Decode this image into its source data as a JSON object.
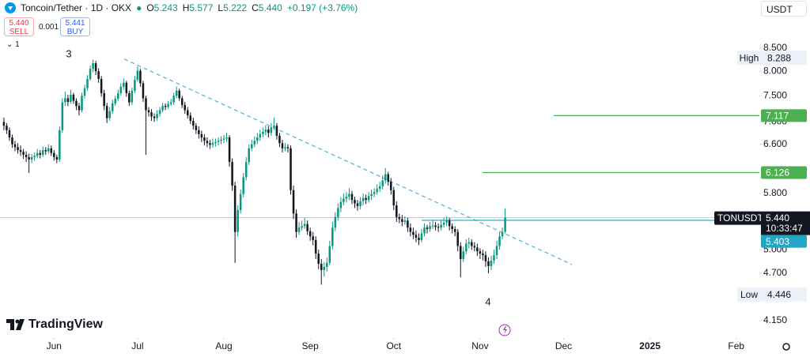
{
  "header": {
    "symbol": "Toncoin/Tether · 1D · OKX",
    "ohlc": [
      {
        "key": "O",
        "value": "5.243"
      },
      {
        "key": "H",
        "value": "5.577"
      },
      {
        "key": "L",
        "value": "5.222"
      },
      {
        "key": "C",
        "value": "5.440"
      }
    ],
    "change": "+0.197 (+3.76%)",
    "sell": {
      "price": "5.440",
      "label": "SELL"
    },
    "spread": "0.001",
    "buy": {
      "price": "5.441",
      "label": "BUY"
    },
    "indicators_count": "1",
    "currency": "USDT",
    "logo": "TradingView"
  },
  "chart_data": {
    "type": "candlestick",
    "log": true,
    "ylim": [
      3.988,
      9.256
    ],
    "yticks": [
      {
        "value": 8.5,
        "label": "8.500"
      },
      {
        "value": 8,
        "label": "8.000"
      },
      {
        "value": 7.5,
        "label": "7.500"
      },
      {
        "value": 7,
        "label": "7.000"
      },
      {
        "value": 6.6,
        "label": "6.600"
      },
      {
        "value": 5.8,
        "label": "5.800"
      },
      {
        "value": 5,
        "label": "5.000"
      },
      {
        "value": 4.7,
        "label": "4.700"
      },
      {
        "value": 4.15,
        "label": "4.150"
      }
    ],
    "xlim": [
      -1.4,
      271.3
    ],
    "xticks": [
      {
        "value": 18,
        "label": "Jun"
      },
      {
        "value": 48,
        "label": "Jul"
      },
      {
        "value": 79,
        "label": "Aug"
      },
      {
        "value": 110,
        "label": "Sep"
      },
      {
        "value": 140,
        "label": "Oct"
      },
      {
        "value": 171,
        "label": "Nov"
      },
      {
        "value": 201,
        "label": "Dec"
      },
      {
        "value": 232,
        "label": "2025",
        "bold": true
      },
      {
        "value": 263,
        "label": "Feb"
      }
    ],
    "colors": {
      "up": "#089981",
      "down": "#131722"
    },
    "candles": [
      [
        7.0,
        7.08,
        6.85,
        6.93
      ],
      [
        6.93,
        6.98,
        6.78,
        6.85
      ],
      [
        6.85,
        6.9,
        6.66,
        6.72
      ],
      [
        6.72,
        6.77,
        6.54,
        6.6
      ],
      [
        6.6,
        6.66,
        6.48,
        6.55
      ],
      [
        6.55,
        6.62,
        6.44,
        6.5
      ],
      [
        6.5,
        6.58,
        6.4,
        6.47
      ],
      [
        6.47,
        6.52,
        6.35,
        6.42
      ],
      [
        6.42,
        6.48,
        6.3,
        6.38
      ],
      [
        6.38,
        6.44,
        6.12,
        6.34
      ],
      [
        6.34,
        6.43,
        6.28,
        6.38
      ],
      [
        6.38,
        6.46,
        6.32,
        6.4
      ],
      [
        6.4,
        6.52,
        6.36,
        6.45
      ],
      [
        6.45,
        6.5,
        6.36,
        6.42
      ],
      [
        6.42,
        6.56,
        6.38,
        6.5
      ],
      [
        6.5,
        6.55,
        6.42,
        6.48
      ],
      [
        6.48,
        6.6,
        6.44,
        6.53
      ],
      [
        6.53,
        6.58,
        6.4,
        6.45
      ],
      [
        6.45,
        6.5,
        6.32,
        6.38
      ],
      [
        6.38,
        6.42,
        6.28,
        6.34
      ],
      [
        6.34,
        6.92,
        6.3,
        6.85
      ],
      [
        6.85,
        7.45,
        6.8,
        7.37
      ],
      [
        7.37,
        7.58,
        7.3,
        7.45
      ],
      [
        7.45,
        7.52,
        7.3,
        7.38
      ],
      [
        7.38,
        7.62,
        7.34,
        7.52
      ],
      [
        7.52,
        7.56,
        7.34,
        7.4
      ],
      [
        7.4,
        7.45,
        7.22,
        7.3
      ],
      [
        7.3,
        7.36,
        7.12,
        7.22
      ],
      [
        7.22,
        7.56,
        7.18,
        7.5
      ],
      [
        7.5,
        7.72,
        7.45,
        7.65
      ],
      [
        7.65,
        7.92,
        7.6,
        7.84
      ],
      [
        7.84,
        8.12,
        7.8,
        8.05
      ],
      [
        8.05,
        8.25,
        7.98,
        8.17
      ],
      [
        8.17,
        8.22,
        7.92,
        8.0
      ],
      [
        8.0,
        8.06,
        7.76,
        7.84
      ],
      [
        7.84,
        7.9,
        7.48,
        7.55
      ],
      [
        7.55,
        7.62,
        7.22,
        7.3
      ],
      [
        7.3,
        7.36,
        6.98,
        7.07
      ],
      [
        7.07,
        7.28,
        7.02,
        7.2
      ],
      [
        7.2,
        7.42,
        7.15,
        7.35
      ],
      [
        7.35,
        7.5,
        7.3,
        7.44
      ],
      [
        7.44,
        7.62,
        7.4,
        7.55
      ],
      [
        7.55,
        7.75,
        7.5,
        7.68
      ],
      [
        7.68,
        7.85,
        7.62,
        7.76
      ],
      [
        7.76,
        7.8,
        7.48,
        7.55
      ],
      [
        7.55,
        7.6,
        7.3,
        7.37
      ],
      [
        7.37,
        7.66,
        7.32,
        7.6
      ],
      [
        7.6,
        7.9,
        7.55,
        7.82
      ],
      [
        7.82,
        8.1,
        7.78,
        8.01
      ],
      [
        8.01,
        8.05,
        7.68,
        7.75
      ],
      [
        7.75,
        7.8,
        7.38,
        7.45
      ],
      [
        7.45,
        7.5,
        6.42,
        7.22
      ],
      [
        7.22,
        7.28,
        7.1,
        7.18
      ],
      [
        7.18,
        7.24,
        7.02,
        7.1
      ],
      [
        7.1,
        7.16,
        7.0,
        7.07
      ],
      [
        7.07,
        7.22,
        7.02,
        7.15
      ],
      [
        7.15,
        7.28,
        7.1,
        7.22
      ],
      [
        7.22,
        7.36,
        7.18,
        7.3
      ],
      [
        7.3,
        7.35,
        7.22,
        7.28
      ],
      [
        7.28,
        7.4,
        7.24,
        7.34
      ],
      [
        7.34,
        7.44,
        7.3,
        7.37
      ],
      [
        7.37,
        7.56,
        7.32,
        7.5
      ],
      [
        7.5,
        7.68,
        7.45,
        7.6
      ],
      [
        7.6,
        7.64,
        7.4,
        7.45
      ],
      [
        7.45,
        7.5,
        7.26,
        7.32
      ],
      [
        7.32,
        7.38,
        7.15,
        7.22
      ],
      [
        7.22,
        7.28,
        7.06,
        7.12
      ],
      [
        7.12,
        7.18,
        6.96,
        7.02
      ],
      [
        7.02,
        7.08,
        6.86,
        6.93
      ],
      [
        6.93,
        6.98,
        6.78,
        6.85
      ],
      [
        6.85,
        6.92,
        6.7,
        6.78
      ],
      [
        6.78,
        6.84,
        6.64,
        6.72
      ],
      [
        6.72,
        6.78,
        6.58,
        6.66
      ],
      [
        6.66,
        6.72,
        6.55,
        6.62
      ],
      [
        6.62,
        6.68,
        6.52,
        6.59
      ],
      [
        6.59,
        6.7,
        6.54,
        6.62
      ],
      [
        6.62,
        6.7,
        6.56,
        6.64
      ],
      [
        6.64,
        6.72,
        6.58,
        6.66
      ],
      [
        6.66,
        6.74,
        6.6,
        6.68
      ],
      [
        6.68,
        6.76,
        6.62,
        6.7
      ],
      [
        6.7,
        6.8,
        6.64,
        6.72
      ],
      [
        6.72,
        6.76,
        6.22,
        6.3
      ],
      [
        6.3,
        6.36,
        5.84,
        5.92
      ],
      [
        5.92,
        5.98,
        4.83,
        5.24
      ],
      [
        5.24,
        5.62,
        5.18,
        5.55
      ],
      [
        5.55,
        5.86,
        5.5,
        5.79
      ],
      [
        5.79,
        6.12,
        5.74,
        6.05
      ],
      [
        6.05,
        6.38,
        6.0,
        6.3
      ],
      [
        6.3,
        6.6,
        6.25,
        6.53
      ],
      [
        6.53,
        6.68,
        6.48,
        6.6
      ],
      [
        6.6,
        6.74,
        6.55,
        6.66
      ],
      [
        6.66,
        6.8,
        6.6,
        6.72
      ],
      [
        6.72,
        6.86,
        6.66,
        6.78
      ],
      [
        6.78,
        6.9,
        6.72,
        6.82
      ],
      [
        6.82,
        6.94,
        6.76,
        6.86
      ],
      [
        6.86,
        6.92,
        6.72,
        6.8
      ],
      [
        6.8,
        6.98,
        6.75,
        6.9
      ],
      [
        6.9,
        7.08,
        6.85,
        6.93
      ],
      [
        6.93,
        6.98,
        6.68,
        6.75
      ],
      [
        6.75,
        6.8,
        6.55,
        6.62
      ],
      [
        6.62,
        6.68,
        6.46,
        6.53
      ],
      [
        6.53,
        6.62,
        6.48,
        6.55
      ],
      [
        6.55,
        6.6,
        6.46,
        6.53
      ],
      [
        6.53,
        6.58,
        5.78,
        5.85
      ],
      [
        5.85,
        5.92,
        5.42,
        5.5
      ],
      [
        5.5,
        5.56,
        5.16,
        5.24
      ],
      [
        5.24,
        5.38,
        5.2,
        5.3
      ],
      [
        5.3,
        5.4,
        5.26,
        5.32
      ],
      [
        5.32,
        5.44,
        5.28,
        5.35
      ],
      [
        5.35,
        5.4,
        5.2,
        5.25
      ],
      [
        5.25,
        5.3,
        5.12,
        5.18
      ],
      [
        5.18,
        5.24,
        5.06,
        5.13
      ],
      [
        5.13,
        5.18,
        4.88,
        4.95
      ],
      [
        4.95,
        5.0,
        4.75,
        4.82
      ],
      [
        4.82,
        4.88,
        4.56,
        4.74
      ],
      [
        4.74,
        4.84,
        4.66,
        4.78
      ],
      [
        4.78,
        4.9,
        4.72,
        4.83
      ],
      [
        4.83,
        5.12,
        4.8,
        5.05
      ],
      [
        5.05,
        5.38,
        5.0,
        5.3
      ],
      [
        5.3,
        5.52,
        5.25,
        5.45
      ],
      [
        5.45,
        5.65,
        5.4,
        5.58
      ],
      [
        5.58,
        5.74,
        5.52,
        5.67
      ],
      [
        5.67,
        5.8,
        5.62,
        5.72
      ],
      [
        5.72,
        5.82,
        5.66,
        5.75
      ],
      [
        5.75,
        5.88,
        5.7,
        5.79
      ],
      [
        5.79,
        5.84,
        5.64,
        5.7
      ],
      [
        5.7,
        5.75,
        5.58,
        5.65
      ],
      [
        5.65,
        5.7,
        5.54,
        5.61
      ],
      [
        5.61,
        5.74,
        5.56,
        5.68
      ],
      [
        5.68,
        5.8,
        5.62,
        5.73
      ],
      [
        5.73,
        5.78,
        5.64,
        5.7
      ],
      [
        5.7,
        5.82,
        5.66,
        5.76
      ],
      [
        5.76,
        5.86,
        5.7,
        5.79
      ],
      [
        5.79,
        5.88,
        5.74,
        5.82
      ],
      [
        5.82,
        5.94,
        5.78,
        5.87
      ],
      [
        5.87,
        5.98,
        5.82,
        5.91
      ],
      [
        5.91,
        6.08,
        5.86,
        6.0
      ],
      [
        6.0,
        6.2,
        5.95,
        6.1
      ],
      [
        6.1,
        6.14,
        5.92,
        5.98
      ],
      [
        5.98,
        6.04,
        5.78,
        5.85
      ],
      [
        5.85,
        5.9,
        5.55,
        5.62
      ],
      [
        5.62,
        5.68,
        5.38,
        5.45
      ],
      [
        5.45,
        5.5,
        5.36,
        5.42
      ],
      [
        5.42,
        5.48,
        5.32,
        5.38
      ],
      [
        5.38,
        5.46,
        5.34,
        5.4
      ],
      [
        5.4,
        5.44,
        5.24,
        5.3
      ],
      [
        5.3,
        5.36,
        5.18,
        5.24
      ],
      [
        5.24,
        5.3,
        5.14,
        5.2
      ],
      [
        5.2,
        5.26,
        5.1,
        5.16
      ],
      [
        5.16,
        5.22,
        5.06,
        5.13
      ],
      [
        5.13,
        5.28,
        5.1,
        5.22
      ],
      [
        5.22,
        5.36,
        5.18,
        5.3
      ],
      [
        5.3,
        5.34,
        5.22,
        5.28
      ],
      [
        5.28,
        5.38,
        5.24,
        5.32
      ],
      [
        5.32,
        5.4,
        5.28,
        5.33
      ],
      [
        5.33,
        5.38,
        5.26,
        5.31
      ],
      [
        5.31,
        5.36,
        5.24,
        5.3
      ],
      [
        5.3,
        5.4,
        5.26,
        5.34
      ],
      [
        5.34,
        5.44,
        5.3,
        5.37
      ],
      [
        5.37,
        5.46,
        5.32,
        5.4
      ],
      [
        5.4,
        5.44,
        5.26,
        5.32
      ],
      [
        5.32,
        5.36,
        5.22,
        5.28
      ],
      [
        5.28,
        5.32,
        5.18,
        5.24
      ],
      [
        5.24,
        5.28,
        4.98,
        5.05
      ],
      [
        5.05,
        5.1,
        4.65,
        4.88
      ],
      [
        4.88,
        5.04,
        4.84,
        4.98
      ],
      [
        4.98,
        5.14,
        4.94,
        5.08
      ],
      [
        5.08,
        5.16,
        5.02,
        5.1
      ],
      [
        5.1,
        5.14,
        5.0,
        5.05
      ],
      [
        5.05,
        5.1,
        4.98,
        5.03
      ],
      [
        5.03,
        5.08,
        4.92,
        4.98
      ],
      [
        4.98,
        5.02,
        4.88,
        4.95
      ],
      [
        4.95,
        5.0,
        4.86,
        4.93
      ],
      [
        4.93,
        4.98,
        4.78,
        4.85
      ],
      [
        4.85,
        4.9,
        4.7,
        4.79
      ],
      [
        4.79,
        4.92,
        4.74,
        4.86
      ],
      [
        4.86,
        5.0,
        4.82,
        4.93
      ],
      [
        4.93,
        5.12,
        4.88,
        5.05
      ],
      [
        5.05,
        5.24,
        5.0,
        5.18
      ],
      [
        5.18,
        5.3,
        5.14,
        5.24
      ],
      [
        5.243,
        5.577,
        5.222,
        5.44
      ]
    ],
    "trendline": {
      "color": "#5bb8d8",
      "x": [
        43.2,
        204
      ],
      "values": [
        8.26,
        4.81
      ]
    },
    "levels": [
      {
        "value": 7.117,
        "color": "#4caf50",
        "x": 197.4
      },
      {
        "value": 6.126,
        "color": "#4caf50",
        "x": 171.9
      },
      {
        "value": 5.403,
        "color": "#22a6c4",
        "x": 150
      }
    ],
    "last": {
      "name": "TONUSDT",
      "value": {
        "value": 5.44,
        "label": "5.440"
      },
      "countdown": "10:33:47"
    },
    "high": {
      "label": "High",
      "value": 8.288
    },
    "low": {
      "label": "Low",
      "value": 4.446
    },
    "annotations": [
      "3",
      "4"
    ]
  }
}
